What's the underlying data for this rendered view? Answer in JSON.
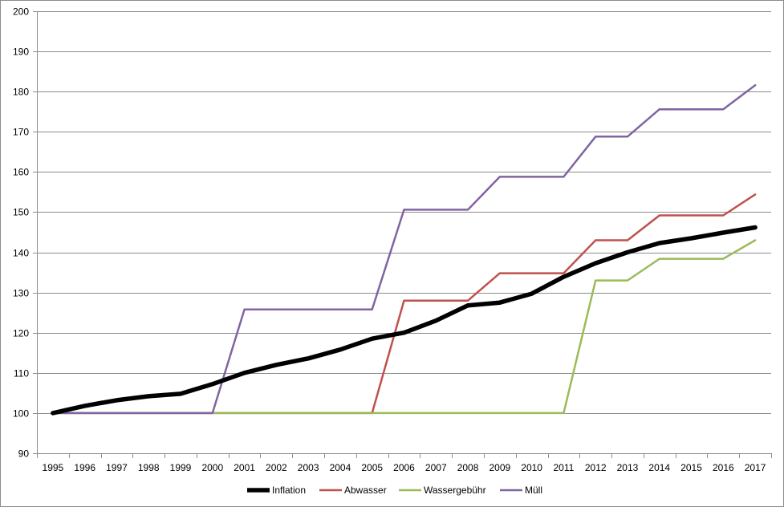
{
  "chart_data": {
    "type": "line",
    "title": "",
    "xlabel": "",
    "ylabel": "",
    "ylim": [
      90,
      200
    ],
    "yticks": [
      90,
      100,
      110,
      120,
      130,
      140,
      150,
      160,
      170,
      180,
      190,
      200
    ],
    "grid": "horizontal",
    "legend_position": "bottom",
    "categories": [
      "1995",
      "1996",
      "1997",
      "1998",
      "1999",
      "2000",
      "2001",
      "2002",
      "2003",
      "2004",
      "2005",
      "2006",
      "2007",
      "2008",
      "2009",
      "2010",
      "2011",
      "2012",
      "2013",
      "2014",
      "2015",
      "2016",
      "2017"
    ],
    "series": [
      {
        "name": "Inflation",
        "color": "#000000",
        "values": [
          100,
          101.8,
          103.2,
          104.2,
          104.8,
          107.2,
          110.0,
          112.0,
          113.6,
          115.8,
          118.5,
          120.0,
          123.0,
          126.8,
          127.5,
          129.7,
          133.9,
          137.3,
          140.0,
          142.3,
          143.5,
          144.9,
          146.2
        ]
      },
      {
        "name": "Abwasser",
        "color": "#c0504d",
        "values": [
          100,
          100,
          100,
          100,
          100,
          100,
          100,
          100,
          100,
          100,
          100,
          128,
          128,
          128,
          134.8,
          134.8,
          134.8,
          143,
          143,
          149.2,
          149.2,
          149.2,
          154.4
        ]
      },
      {
        "name": "Wassergebühr",
        "color": "#9bbb59",
        "values": [
          100,
          100,
          100,
          100,
          100,
          100,
          100,
          100,
          100,
          100,
          100,
          100,
          100,
          100,
          100,
          100,
          100,
          133,
          133,
          138.4,
          138.4,
          138.4,
          143
        ]
      },
      {
        "name": "Müll",
        "color": "#8064a2",
        "values": [
          100,
          100,
          100,
          100,
          100,
          100,
          125.8,
          125.8,
          125.8,
          125.8,
          125.8,
          150.6,
          150.6,
          150.6,
          158.8,
          158.8,
          158.8,
          168.8,
          168.8,
          175.6,
          175.6,
          175.6,
          181.6
        ]
      }
    ]
  }
}
